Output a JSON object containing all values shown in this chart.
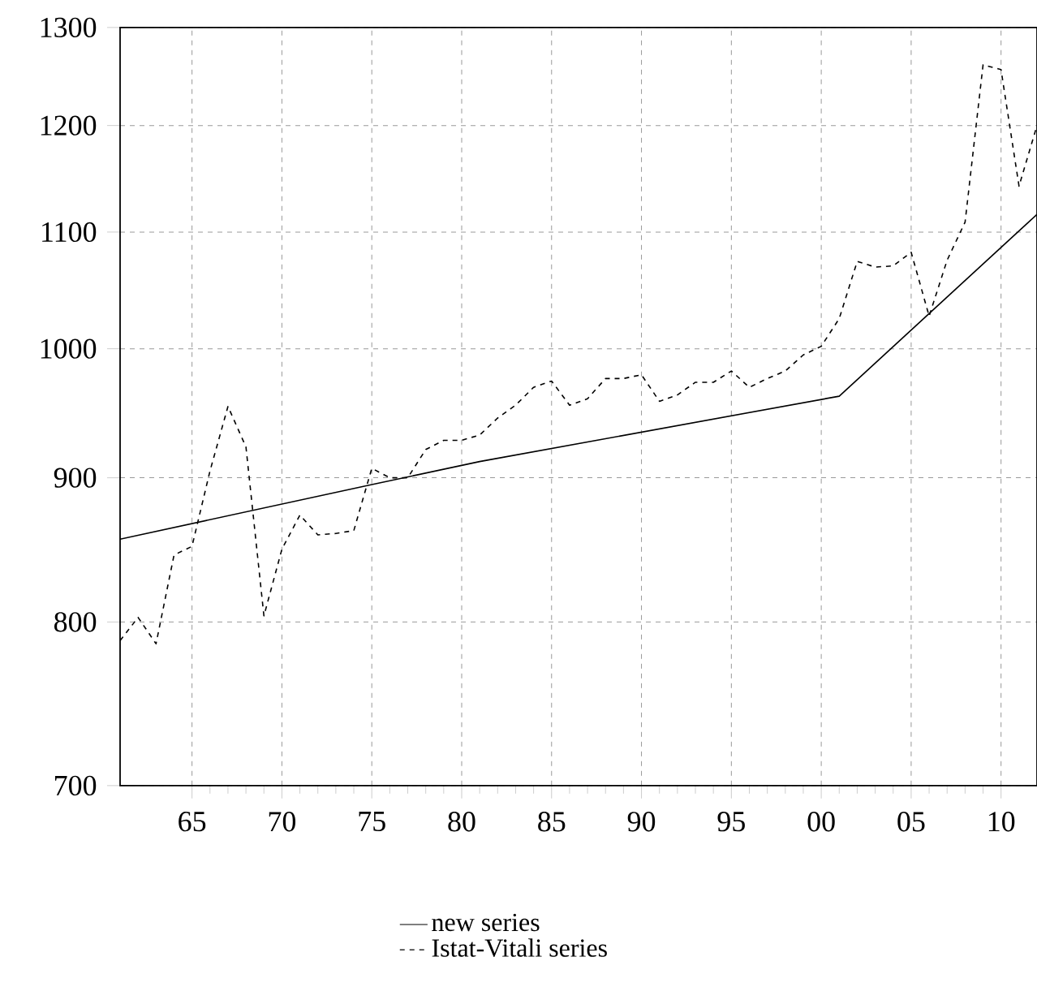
{
  "chart_data": {
    "type": "line",
    "log": "y",
    "grid": true,
    "legend": "bottom",
    "xlim": [
      1961,
      2012
    ],
    "ylim": [
      700,
      1300
    ],
    "xticks": [
      {
        "value": 1965,
        "label": "65"
      },
      {
        "value": 1970,
        "label": "70"
      },
      {
        "value": 1975,
        "label": "75"
      },
      {
        "value": 1980,
        "label": "80"
      },
      {
        "value": 1985,
        "label": "85"
      },
      {
        "value": 1990,
        "label": "90"
      },
      {
        "value": 1995,
        "label": "95"
      },
      {
        "value": 2000,
        "label": "00"
      },
      {
        "value": 2005,
        "label": "05"
      },
      {
        "value": 2010,
        "label": "10"
      }
    ],
    "yticks": [
      700,
      800,
      900,
      1000,
      1100,
      1200,
      1300
    ],
    "series": [
      {
        "name": "new series",
        "color": "#000000",
        "line_style": "solid",
        "x": [
          1961,
          1975,
          1981,
          2001,
          2012
        ],
        "values": [
          856,
          895,
          912,
          962,
          1116
        ]
      },
      {
        "name": "Istat-Vitali series",
        "color": "#000000",
        "line_style": "dashed",
        "x": [
          1961,
          1962,
          1963,
          1964,
          1965,
          1966,
          1967,
          1968,
          1969,
          1970,
          1971,
          1972,
          1973,
          1974,
          1975,
          1976,
          1977,
          1978,
          1979,
          1980,
          1981,
          1982,
          1983,
          1984,
          1985,
          1986,
          1987,
          1988,
          1989,
          1990,
          1991,
          1992,
          1993,
          1994,
          1995,
          1996,
          1997,
          1998,
          1999,
          2000,
          2001,
          2002,
          2003,
          2004,
          2005,
          2006,
          2007,
          2008,
          2009,
          2010,
          2011,
          2012
        ],
        "values": [
          788,
          803,
          786,
          845,
          851,
          905,
          954,
          923,
          804,
          849,
          873,
          859,
          860,
          862,
          907,
          900,
          900,
          921,
          928,
          928,
          932,
          945,
          955,
          969,
          974,
          955,
          960,
          976,
          976,
          979,
          958,
          963,
          973,
          973,
          982,
          969,
          976,
          982,
          995,
          1002,
          1025,
          1074,
          1069,
          1070,
          1082,
          1027,
          1075,
          1109,
          1261,
          1256,
          1142,
          1200
        ]
      }
    ]
  }
}
